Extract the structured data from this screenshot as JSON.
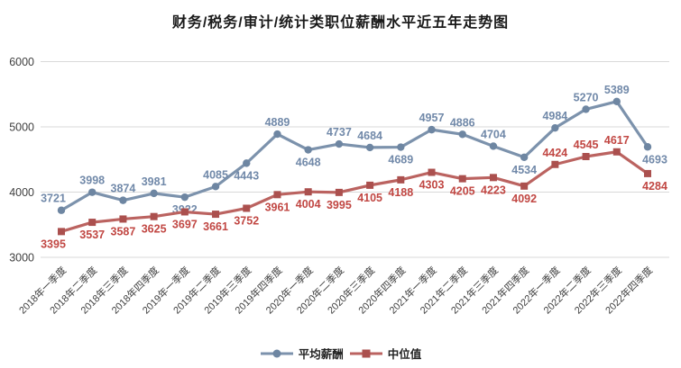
{
  "chart_data": {
    "type": "line",
    "title": "财务/税务/审计/统计类职位薪酬水平近五年走势图",
    "categories": [
      "2018年一季度",
      "2018年二季度",
      "2018年三季度",
      "2018年四季度",
      "2019年一季度",
      "2019年二季度",
      "2019年三季度",
      "2019年四季度",
      "2020年一季度",
      "2020年二季度",
      "2020年三季度",
      "2020年四季度",
      "2021年一季度",
      "2021年二季度",
      "2021年三季度",
      "2021年四季度",
      "2022年一季度",
      "2022年二季度",
      "2022年三季度",
      "2022年四季度"
    ],
    "series": [
      {
        "name": "平均薪酬",
        "marker": "circle",
        "color": "#7C92AC",
        "marker_color": "#6E86A2",
        "label_color": "#7189A9",
        "label_side_default": "above",
        "label_side_exceptions": [
          4,
          6,
          8,
          11,
          15,
          19
        ],
        "values": [
          3721,
          3998,
          3874,
          3981,
          3922,
          4085,
          4443,
          4889,
          4648,
          4737,
          4684,
          4689,
          4957,
          4886,
          4704,
          4534,
          4984,
          5270,
          5389,
          4693
        ]
      },
      {
        "name": "中位值",
        "marker": "square",
        "color": "#BB6360",
        "marker_color": "#AB504E",
        "label_color": "#C14743",
        "label_side_default": "below",
        "label_side_exceptions": [
          16,
          17,
          18
        ],
        "values": [
          3395,
          3537,
          3587,
          3625,
          3697,
          3661,
          3752,
          3961,
          4004,
          3995,
          4105,
          4188,
          4303,
          4205,
          4223,
          4092,
          4424,
          4545,
          4617,
          4284
        ]
      }
    ],
    "ylim": [
      3000,
      6000
    ],
    "yticks": [
      3000,
      4000,
      5000,
      6000
    ],
    "grid": "horizontal-only",
    "gridline_color": "#d9d9d9",
    "axis_text_color": "#3f3f3f",
    "legend_position": "bottom",
    "xlabel": "",
    "ylabel": ""
  }
}
